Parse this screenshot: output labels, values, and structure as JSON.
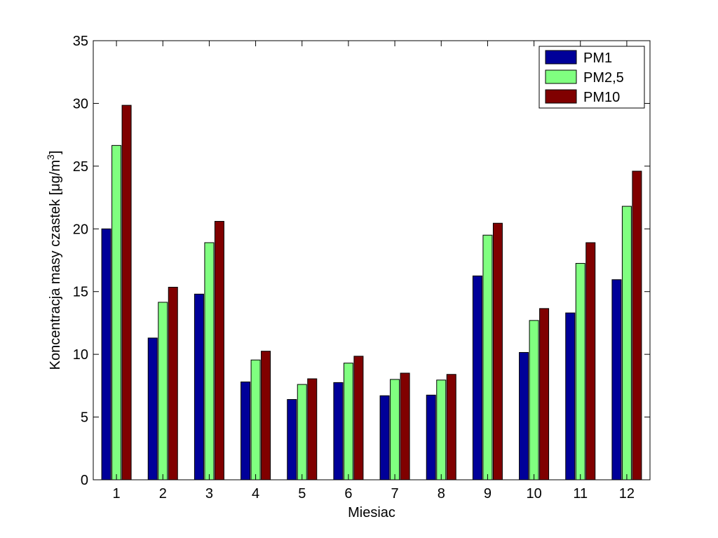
{
  "chart_data": {
    "type": "bar",
    "xlabel": "Miesiac",
    "ylabel": "Koncentracja masy czastek [",
    "ylabel_unit": {
      "mu": "μ",
      "g": "g/m",
      "exp": "3",
      "close": "]"
    },
    "ylim": [
      0,
      35
    ],
    "yticks": [
      0,
      5,
      10,
      15,
      20,
      25,
      30,
      35
    ],
    "categories": [
      "1",
      "2",
      "3",
      "4",
      "5",
      "6",
      "7",
      "8",
      "9",
      "10",
      "11",
      "12"
    ],
    "series": [
      {
        "name": "PM1",
        "color": "#000099",
        "values": [
          20.0,
          11.3,
          14.8,
          7.8,
          6.4,
          7.75,
          6.7,
          6.75,
          16.25,
          10.15,
          13.3,
          15.95
        ]
      },
      {
        "name": "PM2,5",
        "color": "#80ff80",
        "values": [
          26.65,
          14.15,
          18.9,
          9.55,
          7.6,
          9.3,
          8.0,
          7.95,
          19.5,
          12.7,
          17.25,
          21.8
        ]
      },
      {
        "name": "PM10",
        "color": "#800000",
        "values": [
          29.85,
          15.35,
          20.6,
          10.25,
          8.05,
          9.85,
          8.5,
          8.4,
          20.45,
          13.65,
          18.9,
          24.6
        ]
      }
    ],
    "legend_position": "top-right",
    "grid": false
  }
}
